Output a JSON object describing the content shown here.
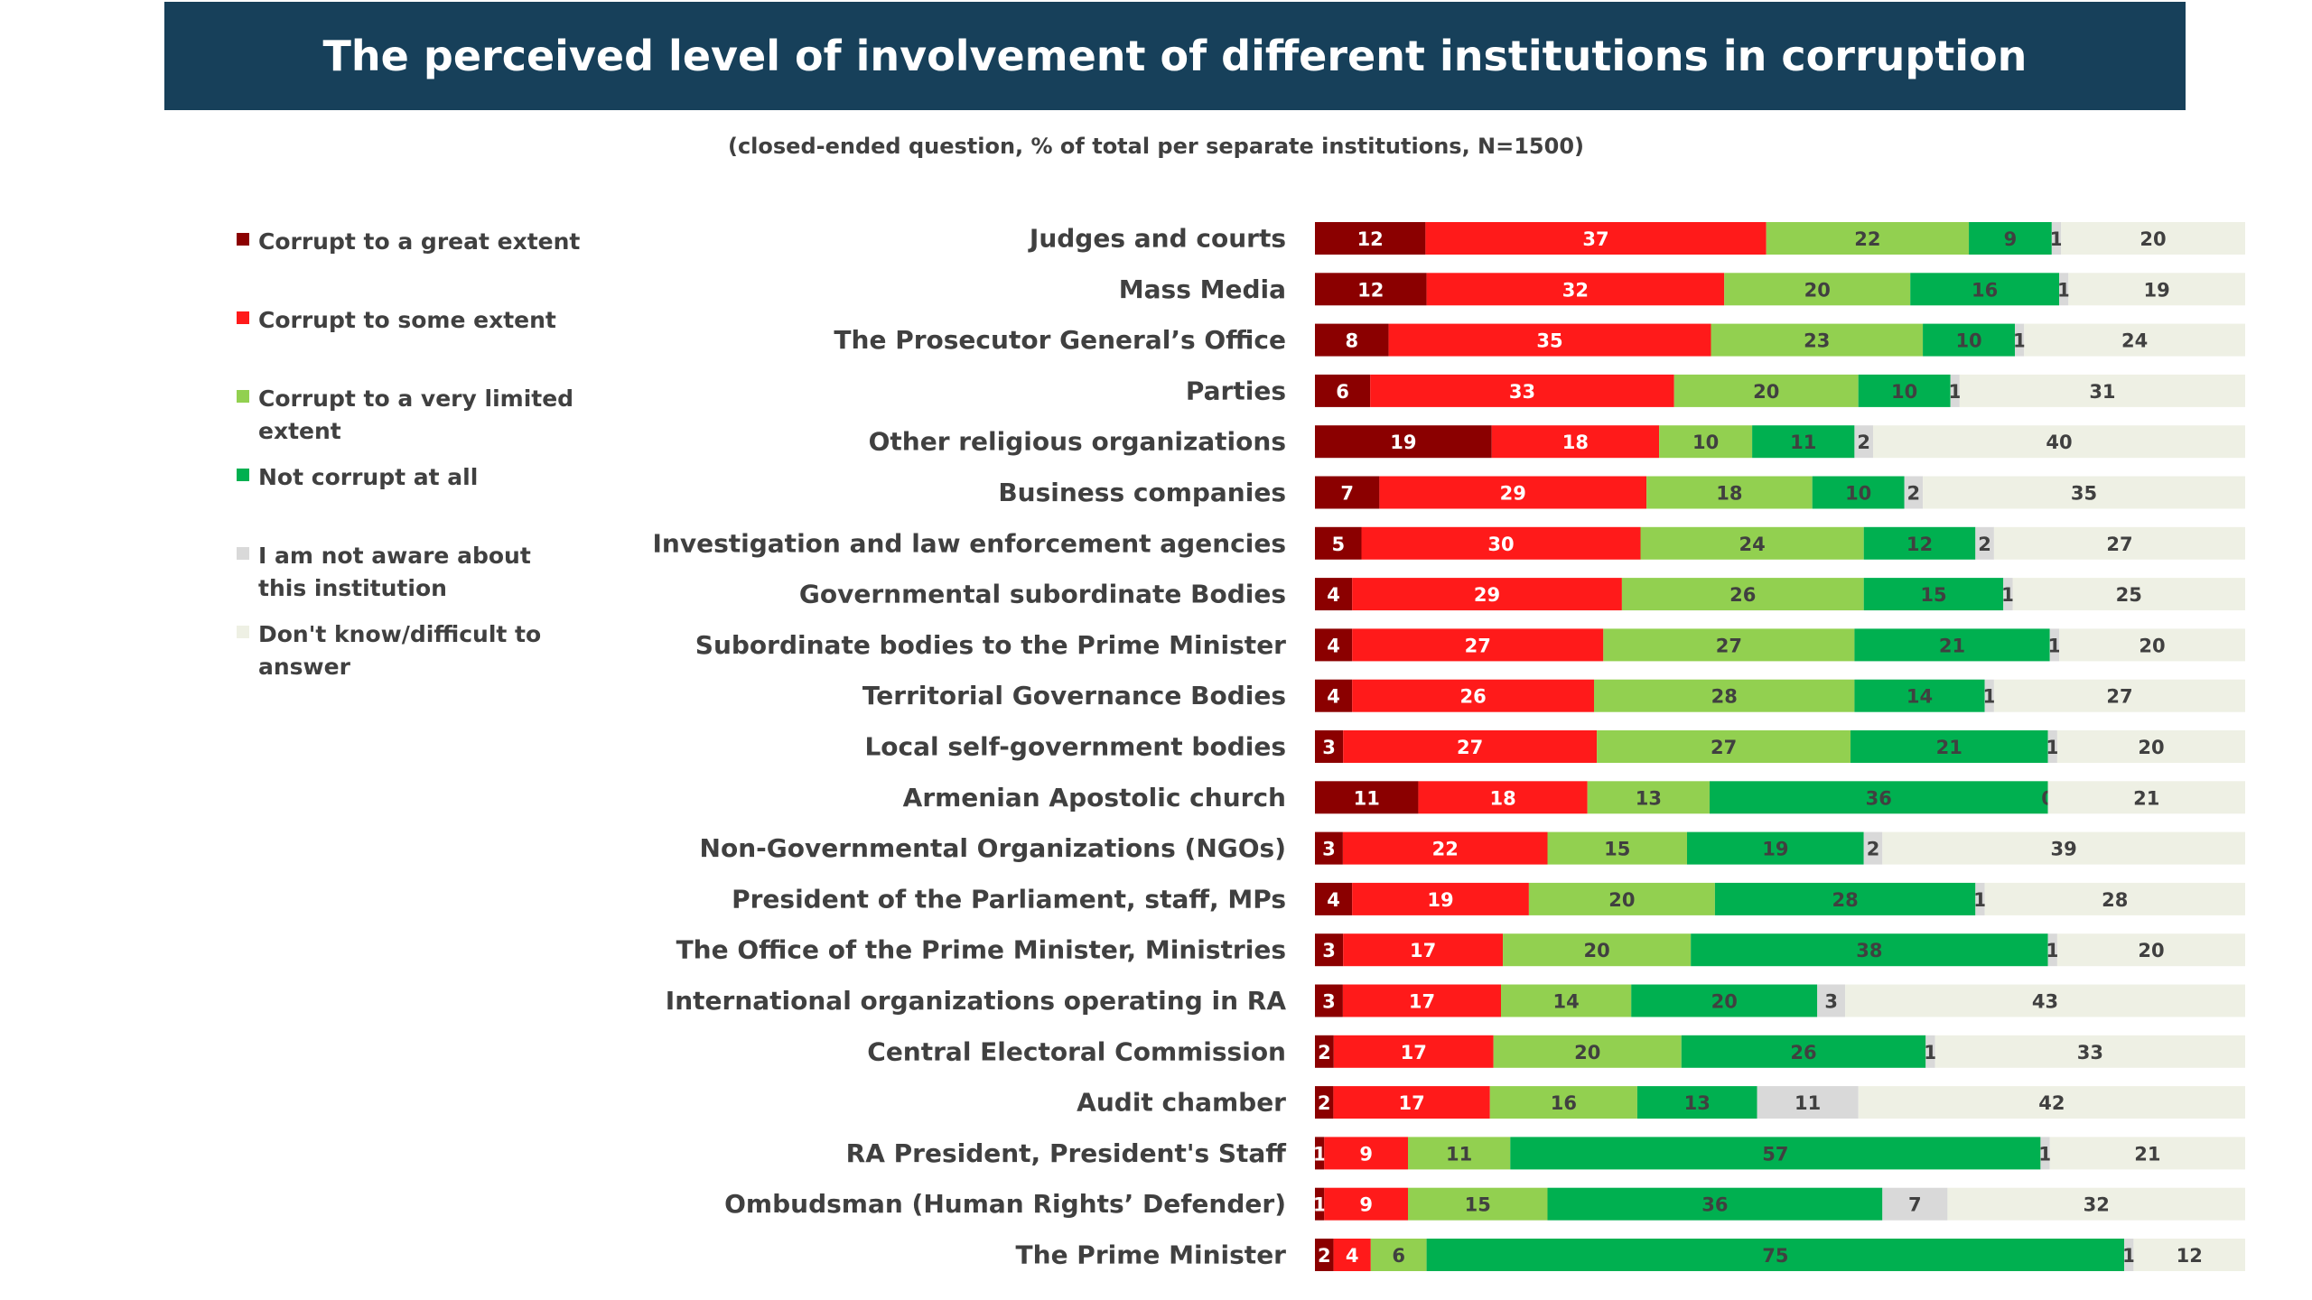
{
  "header": {
    "title": "The perceived level of involvement of different institutions in corruption",
    "subtitle": "(closed-ended question, % of total per separate institutions, N=1500)"
  },
  "chart_data": {
    "type": "bar",
    "orientation": "horizontal",
    "stacked": true,
    "legend_position": "left",
    "grid": false,
    "xlim": [
      0,
      100
    ],
    "categories": [
      "Judges and courts",
      "Mass Media",
      "The Prosecutor General’s Office",
      "Parties",
      "Other religious organizations",
      "Business companies",
      "Investigation and law enforcement agencies",
      "Governmental subordinate Bodies",
      "Subordinate bodies to the Prime Minister",
      "Territorial Governance Bodies",
      "Local self-government bodies",
      "Armenian Apostolic church",
      "Non-Governmental Organizations (NGOs)",
      "President of the Parliament, staff, MPs",
      "The Office of the Prime Minister, Ministries",
      "International organizations operating in RA",
      "Central Electoral Commission",
      "Audit chamber",
      "RA President, President's Staff",
      "Ombudsman (Human Rights’ Defender)",
      "The Prime Minister"
    ],
    "series": [
      {
        "name": "Corrupt to a great extent",
        "color": "#8b0000",
        "label_color": "#ffffff",
        "values": [
          12,
          12,
          8,
          6,
          19,
          7,
          5,
          4,
          4,
          4,
          3,
          11,
          3,
          4,
          3,
          3,
          2,
          2,
          1,
          1,
          2
        ]
      },
      {
        "name": "Corrupt to some extent",
        "color": "#ff1a1a",
        "label_color": "#ffffff",
        "values": [
          37,
          32,
          35,
          33,
          18,
          29,
          30,
          29,
          27,
          26,
          27,
          18,
          22,
          19,
          17,
          17,
          17,
          17,
          9,
          9,
          4
        ]
      },
      {
        "name": "Corrupt to a very limited extent",
        "color": "#92d050",
        "label_color": "#404040",
        "values": [
          22,
          20,
          23,
          20,
          10,
          18,
          24,
          26,
          27,
          28,
          27,
          13,
          15,
          20,
          20,
          14,
          20,
          16,
          11,
          15,
          6
        ]
      },
      {
        "name": "Not corrupt at all",
        "color": "#00b050",
        "label_color": "#404040",
        "values": [
          9,
          16,
          10,
          10,
          11,
          10,
          12,
          15,
          21,
          14,
          21,
          36,
          19,
          28,
          38,
          20,
          26,
          13,
          57,
          36,
          75
        ]
      },
      {
        "name": "I am not aware about this institution",
        "color": "#d9d9d9",
        "label_color": "#404040",
        "values": [
          1,
          1,
          1,
          1,
          2,
          2,
          2,
          1,
          1,
          1,
          1,
          0,
          2,
          1,
          1,
          3,
          1,
          11,
          1,
          7,
          1
        ]
      },
      {
        "name": "Don't know/difficult to answer",
        "color": "#eef0e4",
        "label_color": "#404040",
        "values": [
          20,
          19,
          24,
          31,
          40,
          35,
          27,
          25,
          20,
          27,
          20,
          21,
          39,
          28,
          20,
          43,
          33,
          42,
          21,
          32,
          12
        ]
      }
    ]
  }
}
